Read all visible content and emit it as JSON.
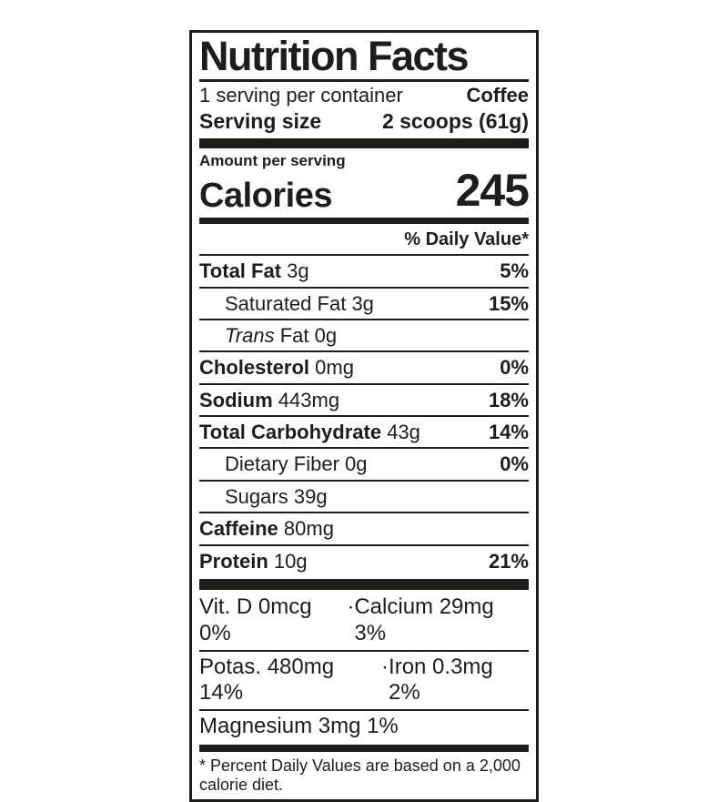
{
  "label": {
    "title": "Nutrition Facts",
    "servings_per_container": "1 serving per container",
    "flavor": "Coffee",
    "serving_size_label": "Serving size",
    "serving_size_value": "2 scoops (61g)",
    "amount_per_serving": "Amount per serving",
    "calories_label": "Calories",
    "calories_value": "245",
    "daily_value_header": "% Daily Value*",
    "nutrients": [
      {
        "name": "Total Fat",
        "amount": "3g",
        "dv": "5%"
      },
      {
        "name": "Saturated Fat",
        "amount": "3g",
        "dv": "15%"
      },
      {
        "name_italic": "Trans",
        "name": "Fat",
        "amount": "0g",
        "dv": ""
      },
      {
        "name": "Cholesterol",
        "amount": "0mg",
        "dv": "0%"
      },
      {
        "name": "Sodium",
        "amount": "443mg",
        "dv": "18%"
      },
      {
        "name": "Total Carbohydrate",
        "amount": "43g",
        "dv": "14%"
      },
      {
        "name": "Dietary Fiber",
        "amount": "0g",
        "dv": "0%"
      },
      {
        "name": "Sugars",
        "amount": "39g",
        "dv": ""
      },
      {
        "name": "Caffeine",
        "amount": "80mg",
        "dv": ""
      },
      {
        "name": "Protein",
        "amount": "10g",
        "dv": "21%"
      }
    ],
    "micronutrients": [
      {
        "left": "Vit. D 0mcg 0%",
        "separator": "·",
        "right": "Calcium 29mg 3%"
      },
      {
        "left": "Potas. 480mg 14%",
        "separator": "·",
        "right": "Iron 0.3mg 2%"
      },
      {
        "left": "Magnesium 3mg 1%",
        "separator": "",
        "right": ""
      }
    ],
    "footnote": "* Percent Daily Values are based on a 2,000 calorie diet."
  },
  "colors": {
    "text": "#1d1d1b",
    "border": "#1d1d1b",
    "background": "#ffffff"
  }
}
